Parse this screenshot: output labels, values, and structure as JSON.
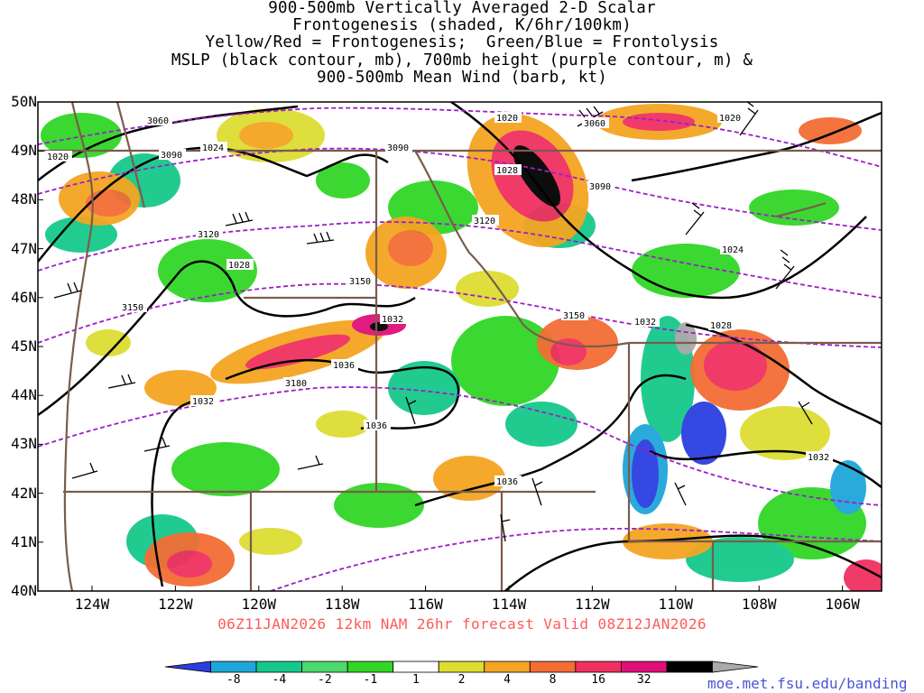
{
  "title_lines": [
    "900-500mb Vertically Averaged 2-D Scalar",
    "Frontogenesis (shaded, K/6hr/100km)",
    "Yellow/Red = Frontogenesis;  Green/Blue = Frontolysis",
    "MSLP (black contour, mb), 700mb height (purple contour, m) &",
    "900-500mb Mean Wind (barb, kt)"
  ],
  "latitudes": [
    "50N",
    "49N",
    "48N",
    "47N",
    "46N",
    "45N",
    "44N",
    "43N",
    "42N",
    "41N",
    "40N"
  ],
  "longitudes": [
    "124W",
    "122W",
    "120W",
    "118W",
    "116W",
    "114W",
    "112W",
    "110W",
    "108W",
    "106W"
  ],
  "footer": "06Z11JAN2026 12km NAM 26hr forecast Valid 08Z12JAN2026",
  "credit": "moe.met.fsu.edu/banding",
  "colorbar": {
    "labels": [
      "-8",
      "-4",
      "-2",
      "-1",
      "1",
      "2",
      "4",
      "8",
      "16",
      "32"
    ],
    "colors": [
      "#2b3fe0",
      "#1fa6d9",
      "#16c98a",
      "#4dd96b",
      "#31d626",
      "#ffffff",
      "#dddd33",
      "#f4a521",
      "#f36d35",
      "#f03060",
      "#e0107a",
      "#000000",
      "#aaaaaa"
    ]
  },
  "mslp_labels": [
    "1020",
    "1024",
    "1028",
    "1032",
    "1036"
  ],
  "height_labels": [
    "3060",
    "3090",
    "3120",
    "3150",
    "3180"
  ],
  "colors": {
    "mslp": "#000000",
    "height": "#9b20c8",
    "borders": "#7a5c4c",
    "footer": "#ff5a5a",
    "credit": "#4a55d6"
  }
}
